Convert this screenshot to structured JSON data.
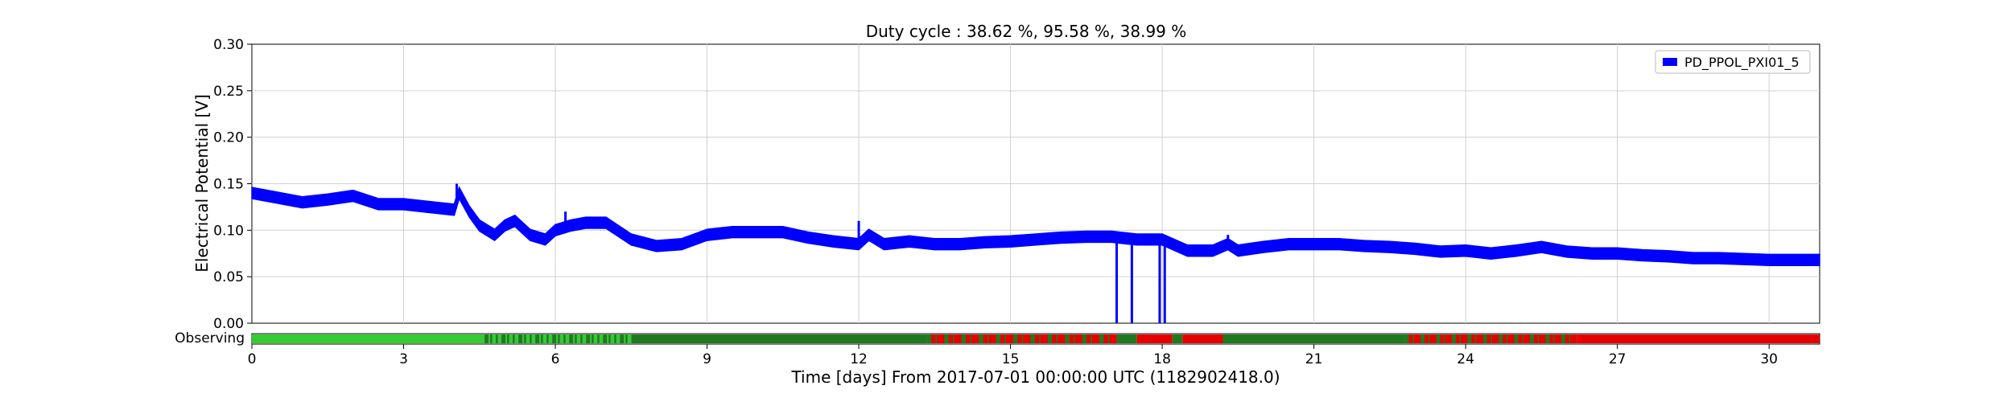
{
  "chart_data": {
    "type": "line",
    "title": "Duty cycle : 38.62 %, 95.58 %, 38.99 %",
    "xlabel": "Time [days] From 2017-07-01 00:00:00 UTC (1182902418.0)",
    "ylabel": "Electrical Potential [V]",
    "xlim": [
      0,
      31
    ],
    "ylim": [
      0,
      0.3
    ],
    "x_ticks": [
      0,
      3,
      6,
      9,
      12,
      15,
      18,
      21,
      24,
      27,
      30
    ],
    "x_tick_labels": [
      "0",
      "3",
      "6",
      "9",
      "12",
      "15",
      "18",
      "21",
      "24",
      "27",
      "30"
    ],
    "y_ticks": [
      0,
      0.05,
      0.1,
      0.15,
      0.2,
      0.25,
      0.3
    ],
    "y_tick_labels": [
      "0.00",
      "0.05",
      "0.10",
      "0.15",
      "0.20",
      "0.25",
      "0.30"
    ],
    "grid": true,
    "legend_position": "top-right",
    "series": [
      {
        "name": "PD_PPOL_PXI01_5",
        "color": "#0000ff",
        "band_halfwidth": 0.006,
        "x": [
          0,
          0.5,
          1,
          1.5,
          2,
          2.5,
          3,
          3.5,
          4,
          4.1,
          4.3,
          4.5,
          4.8,
          5,
          5.2,
          5.5,
          5.8,
          6,
          6.3,
          6.6,
          7,
          7.5,
          8,
          8.5,
          9,
          9.5,
          10,
          10.5,
          11,
          11.5,
          12,
          12.2,
          12.5,
          13,
          13.5,
          14,
          14.5,
          15,
          15.5,
          16,
          16.5,
          17,
          17.5,
          18,
          18.5,
          19,
          19.3,
          19.5,
          20,
          20.5,
          21,
          21.5,
          22,
          22.5,
          23,
          23.5,
          24,
          24.5,
          25,
          25.5,
          26,
          26.5,
          27,
          27.5,
          28,
          28.5,
          29,
          29.5,
          30,
          30.5,
          31
        ],
        "y": [
          0.14,
          0.135,
          0.13,
          0.133,
          0.137,
          0.128,
          0.128,
          0.125,
          0.122,
          0.14,
          0.12,
          0.105,
          0.095,
          0.105,
          0.11,
          0.095,
          0.09,
          0.1,
          0.105,
          0.108,
          0.108,
          0.09,
          0.083,
          0.085,
          0.095,
          0.098,
          0.098,
          0.098,
          0.092,
          0.088,
          0.085,
          0.095,
          0.085,
          0.088,
          0.085,
          0.085,
          0.087,
          0.088,
          0.09,
          0.092,
          0.093,
          0.093,
          0.09,
          0.09,
          0.078,
          0.078,
          0.085,
          0.078,
          0.082,
          0.085,
          0.085,
          0.085,
          0.083,
          0.082,
          0.08,
          0.077,
          0.078,
          0.075,
          0.078,
          0.082,
          0.077,
          0.075,
          0.075,
          0.073,
          0.072,
          0.07,
          0.07,
          0.069,
          0.068,
          0.068,
          0.068
        ]
      }
    ],
    "dropouts": [
      {
        "x": 17.1,
        "y": 0
      },
      {
        "x": 17.4,
        "y": 0
      },
      {
        "x": 17.95,
        "y": 0
      },
      {
        "x": 18.05,
        "y": 0
      }
    ],
    "spikes": [
      {
        "x": 4.05,
        "y": 0.15
      },
      {
        "x": 6.2,
        "y": 0.12
      },
      {
        "x": 12.0,
        "y": 0.11
      },
      {
        "x": 19.3,
        "y": 0.095
      }
    ],
    "state_bar": {
      "label": "Observing",
      "colors": {
        "light": "#33cc33",
        "dark": "#1f7a1f",
        "off": "#e60000"
      },
      "segments": [
        {
          "start": 0,
          "end": 4.6,
          "state": "light"
        },
        {
          "start": 4.6,
          "end": 7.5,
          "state": "mixed"
        },
        {
          "start": 7.5,
          "end": 13.35,
          "state": "dark"
        },
        {
          "start": 13.35,
          "end": 17.1,
          "state": "off_mixed"
        },
        {
          "start": 17.1,
          "end": 17.5,
          "state": "dark"
        },
        {
          "start": 17.5,
          "end": 18.2,
          "state": "off"
        },
        {
          "start": 18.2,
          "end": 18.4,
          "state": "dark"
        },
        {
          "start": 18.4,
          "end": 19.2,
          "state": "off"
        },
        {
          "start": 19.2,
          "end": 22.8,
          "state": "dark"
        },
        {
          "start": 22.8,
          "end": 26.2,
          "state": "off_mixed"
        },
        {
          "start": 26.2,
          "end": 31,
          "state": "off"
        }
      ]
    }
  }
}
